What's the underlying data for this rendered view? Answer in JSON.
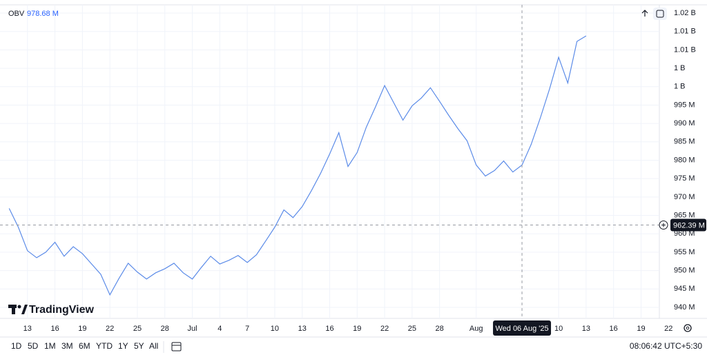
{
  "chart_data": {
    "type": "line",
    "legend": {
      "name": "OBV",
      "value": 978.68,
      "value_label": "978.68 M"
    },
    "logo": "TradingView",
    "series": [
      {
        "name": "OBV",
        "color": "#5b8be8",
        "values": [
          966.9,
          961.8,
          955.4,
          953.5,
          955.0,
          957.7,
          953.9,
          956.5,
          954.6,
          951.8,
          949.0,
          943.4,
          947.9,
          952.0,
          949.6,
          947.7,
          949.4,
          950.5,
          952.0,
          949.4,
          947.7,
          950.9,
          953.9,
          951.8,
          952.8,
          954.1,
          952.2,
          954.3,
          958.0,
          961.8,
          966.5,
          964.4,
          967.4,
          971.7,
          976.4,
          981.7,
          987.5,
          978.3,
          982.1,
          989.0,
          994.5,
          1000.3,
          995.6,
          990.9,
          994.8,
          996.9,
          999.7,
          996.0,
          992.2,
          988.6,
          985.3,
          978.7,
          975.7,
          977.2,
          979.8,
          976.8,
          978.68,
          984.3,
          991.5,
          999.3,
          1008.0,
          1001.0,
          1012.3,
          1013.8
        ]
      }
    ],
    "x": [
      "2025-06-11",
      "2025-06-12",
      "2025-06-13",
      "2025-06-14",
      "2025-06-15",
      "2025-06-16",
      "2025-06-17",
      "2025-06-18",
      "2025-06-19",
      "2025-06-20",
      "2025-06-21",
      "2025-06-22",
      "2025-06-23",
      "2025-06-24",
      "2025-06-25",
      "2025-06-26",
      "2025-06-27",
      "2025-06-28",
      "2025-06-29",
      "2025-06-30",
      "2025-07-01",
      "2025-07-02",
      "2025-07-03",
      "2025-07-04",
      "2025-07-05",
      "2025-07-06",
      "2025-07-07",
      "2025-07-08",
      "2025-07-09",
      "2025-07-10",
      "2025-07-11",
      "2025-07-12",
      "2025-07-13",
      "2025-07-14",
      "2025-07-15",
      "2025-07-16",
      "2025-07-17",
      "2025-07-18",
      "2025-07-19",
      "2025-07-20",
      "2025-07-21",
      "2025-07-22",
      "2025-07-23",
      "2025-07-24",
      "2025-07-25",
      "2025-07-26",
      "2025-07-27",
      "2025-07-28",
      "2025-07-29",
      "2025-07-30",
      "2025-07-31",
      "2025-08-01",
      "2025-08-02",
      "2025-08-03",
      "2025-08-04",
      "2025-08-05",
      "2025-08-06",
      "2025-08-07",
      "2025-08-08",
      "2025-08-09",
      "2025-08-10",
      "2025-08-11",
      "2025-08-12",
      "2025-08-13"
    ],
    "xlim": [
      "2025-06-10",
      "2025-08-21"
    ],
    "xticks": [
      {
        "value": "2025-06-13",
        "label": "13"
      },
      {
        "value": "2025-06-16",
        "label": "16"
      },
      {
        "value": "2025-06-19",
        "label": "19"
      },
      {
        "value": "2025-06-22",
        "label": "22"
      },
      {
        "value": "2025-06-25",
        "label": "25"
      },
      {
        "value": "2025-06-28",
        "label": "28"
      },
      {
        "value": "2025-07-01",
        "label": "Jul"
      },
      {
        "value": "2025-07-04",
        "label": "4"
      },
      {
        "value": "2025-07-07",
        "label": "7"
      },
      {
        "value": "2025-07-10",
        "label": "10"
      },
      {
        "value": "2025-07-13",
        "label": "13"
      },
      {
        "value": "2025-07-16",
        "label": "16"
      },
      {
        "value": "2025-07-19",
        "label": "19"
      },
      {
        "value": "2025-07-22",
        "label": "22"
      },
      {
        "value": "2025-07-25",
        "label": "25"
      },
      {
        "value": "2025-07-28",
        "label": "28"
      },
      {
        "value": "2025-08-01",
        "label": "Aug"
      },
      {
        "value": "2025-08-10",
        "label": "10"
      },
      {
        "value": "2025-08-13",
        "label": "13"
      },
      {
        "value": "2025-08-16",
        "label": "16"
      },
      {
        "value": "2025-08-19",
        "label": "19"
      },
      {
        "value": "2025-08-22",
        "label": "22"
      }
    ],
    "ylim": [
      937,
      1022.25
    ],
    "yticks": [
      {
        "value": 940,
        "label": "940 M"
      },
      {
        "value": 945,
        "label": "945 M"
      },
      {
        "value": 950,
        "label": "950 M"
      },
      {
        "value": 955,
        "label": "955 M"
      },
      {
        "value": 960,
        "label": "960 M"
      },
      {
        "value": 965,
        "label": "965 M"
      },
      {
        "value": 970,
        "label": "970 M"
      },
      {
        "value": 975,
        "label": "975 M"
      },
      {
        "value": 980,
        "label": "980 M"
      },
      {
        "value": 985,
        "label": "985 M"
      },
      {
        "value": 990,
        "label": "990 M"
      },
      {
        "value": 995,
        "label": "995 M"
      },
      {
        "value": 1000,
        "label": "1 B"
      },
      {
        "value": 1005,
        "label": "1 B"
      },
      {
        "value": 1010,
        "label": "1.01 B"
      },
      {
        "value": 1015,
        "label": "1.01 B"
      },
      {
        "value": 1020,
        "label": "1.02 B"
      }
    ],
    "grid": true,
    "crosshair": {
      "x": "2025-08-06",
      "x_label": "Wed 06 Aug '25",
      "y": 962.39,
      "y_label": "962.39 M"
    },
    "ranges": [
      "1D",
      "5D",
      "1M",
      "3M",
      "6M",
      "YTD",
      "1Y",
      "5Y",
      "All"
    ],
    "clock": "08:06:42 UTC+5:30"
  }
}
